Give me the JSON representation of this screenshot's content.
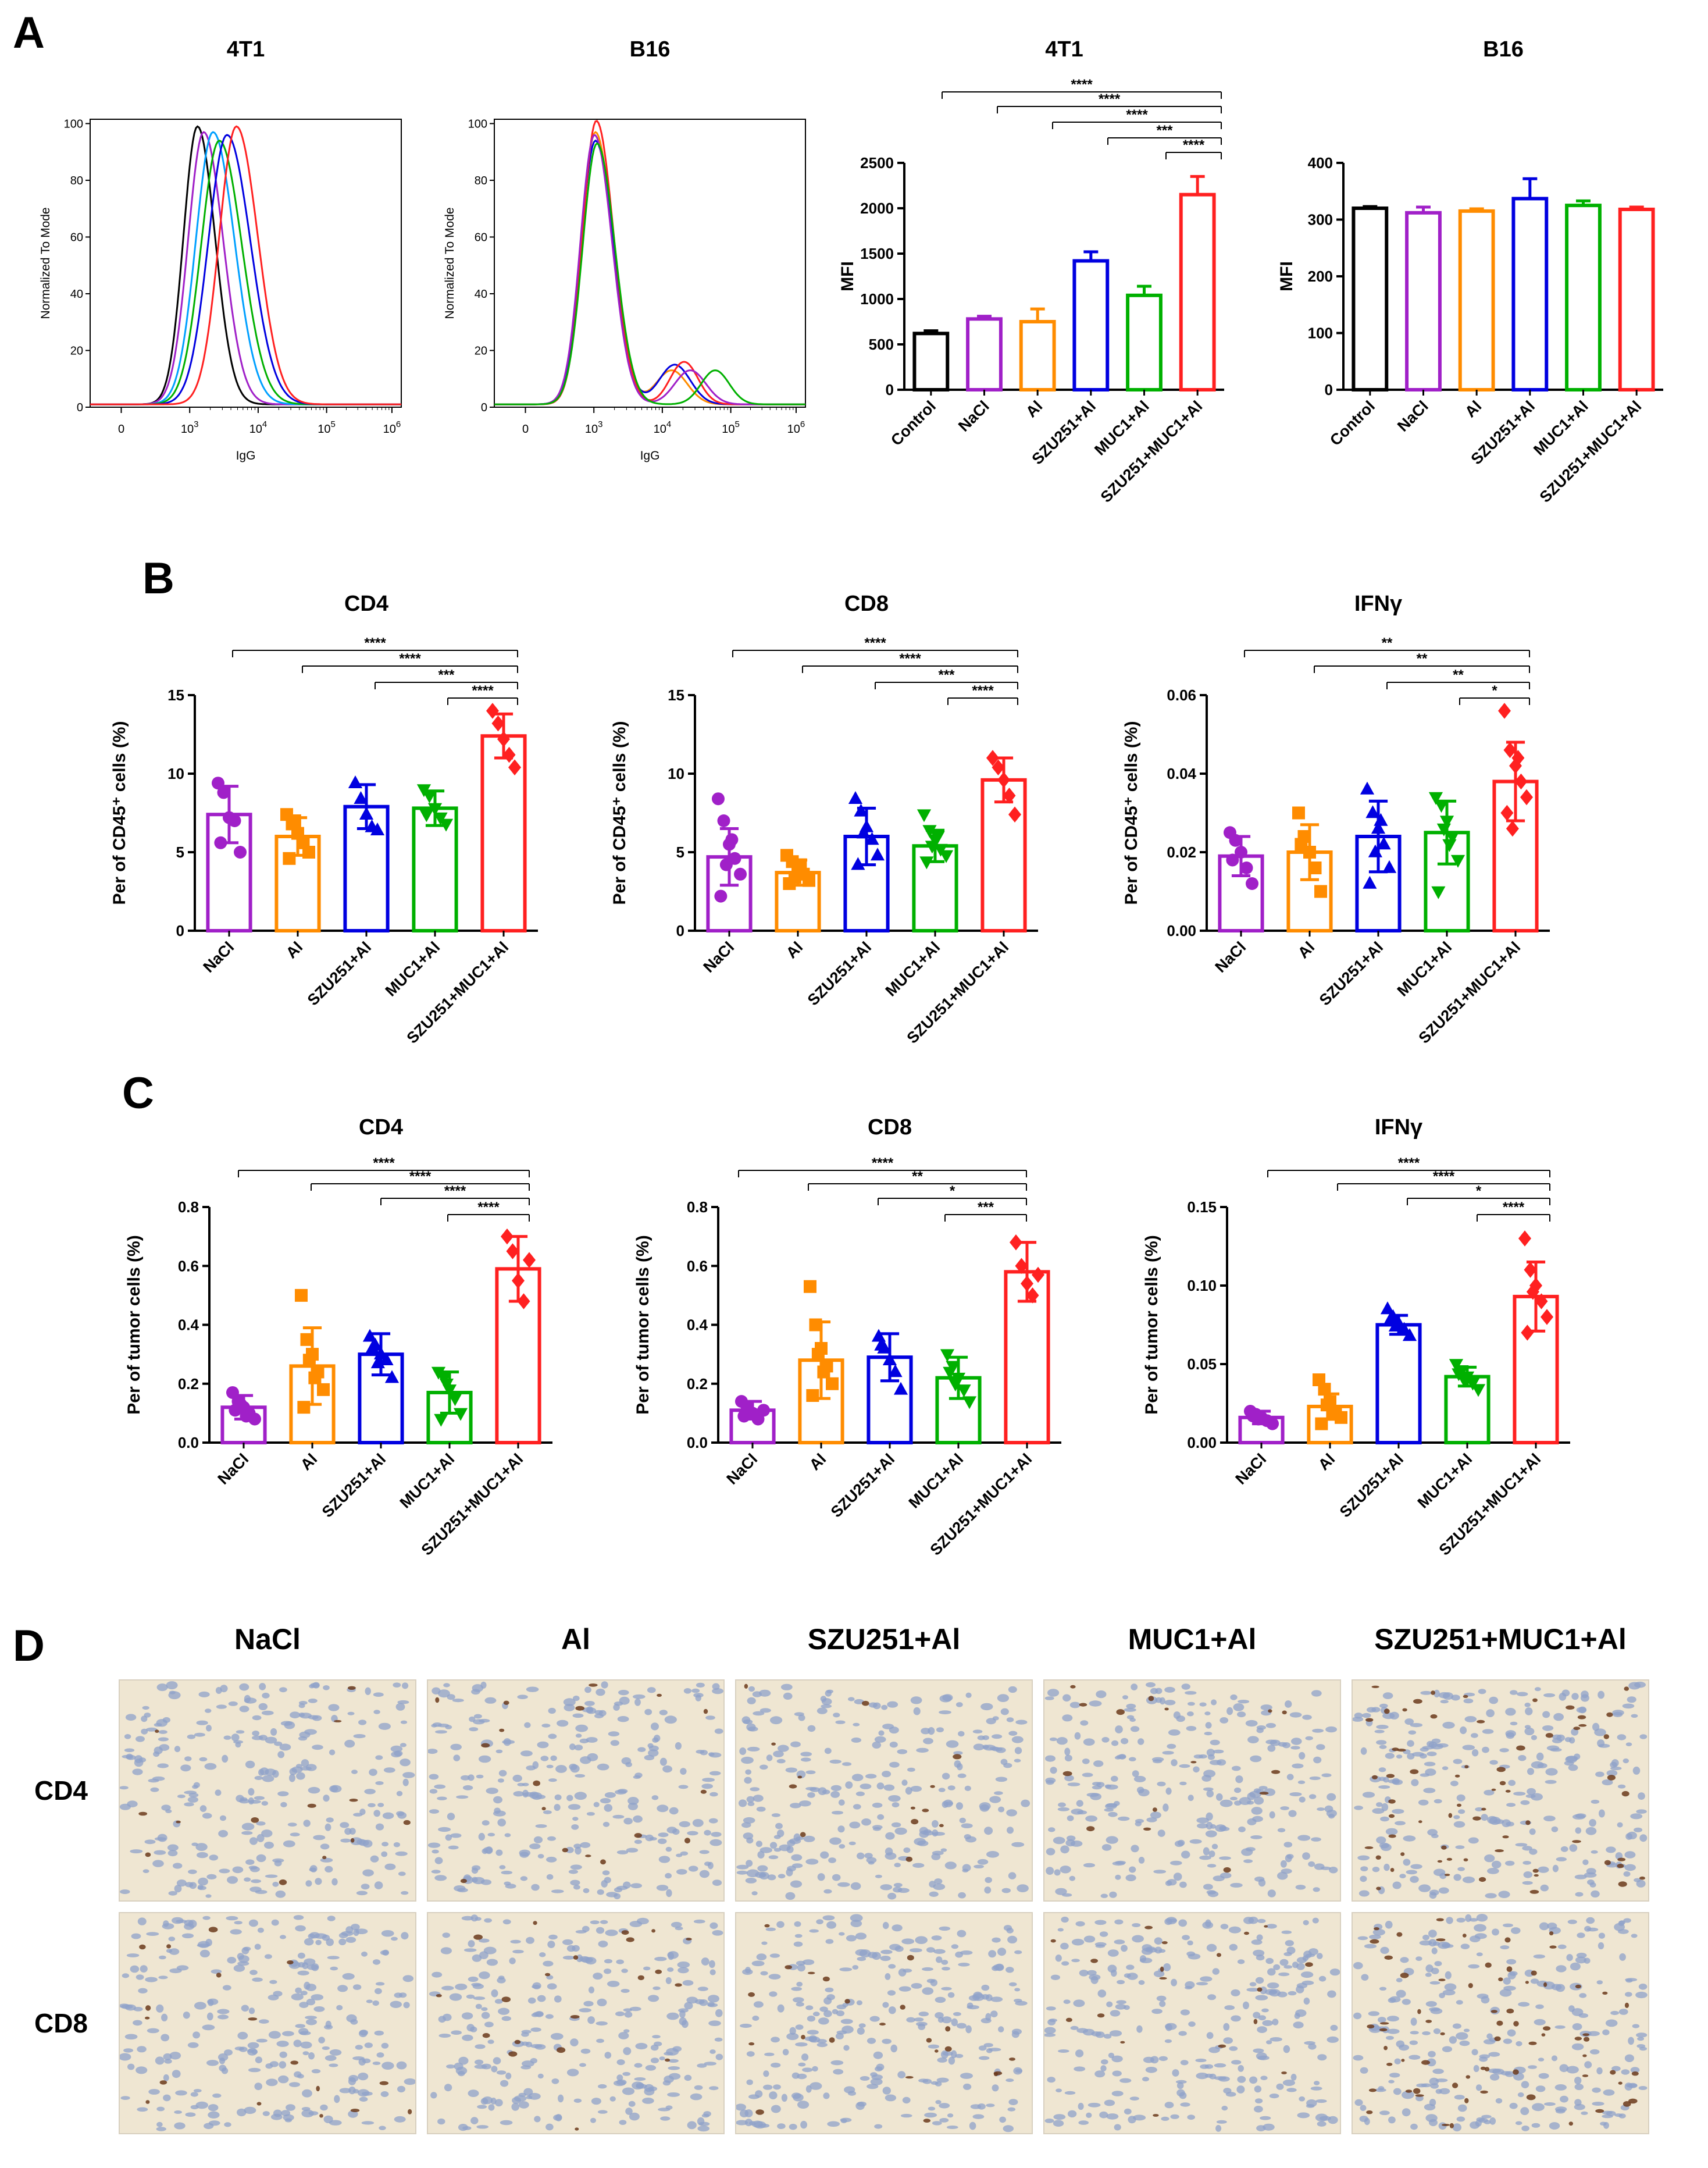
{
  "panel_labels": {
    "A": "A",
    "B": "B",
    "C": "C",
    "D": "D"
  },
  "group_colors": {
    "Control": "#000000",
    "NaCl": "#a020c8",
    "Al": "#ff8c00",
    "SZU251+Al": "#0000e0",
    "MUC1+Al": "#00b000",
    "SZU251+MUC1+Al": "#ff2020",
    "Emph": "#e60000"
  },
  "flow": [
    {
      "title": "4T1",
      "ylabel": "Normalized To Mode",
      "xlabel": "IgG",
      "yticks": [
        "0",
        "20",
        "40",
        "60",
        "80",
        "100"
      ],
      "xticks": [
        {
          "b": "0",
          "e": ""
        },
        {
          "b": "10",
          "e": "3"
        },
        {
          "b": "10",
          "e": "4"
        },
        {
          "b": "10",
          "e": "5"
        },
        {
          "b": "10",
          "e": "6"
        }
      ]
    },
    {
      "title": "B16",
      "ylabel": "Normalized To Mode",
      "xlabel": "IgG",
      "yticks": [
        "0",
        "20",
        "40",
        "60",
        "80",
        "100"
      ],
      "xticks": [
        {
          "b": "0",
          "e": ""
        },
        {
          "b": "10",
          "e": "3"
        },
        {
          "b": "10",
          "e": "4"
        },
        {
          "b": "10",
          "e": "5"
        },
        {
          "b": "10",
          "e": "6"
        }
      ]
    }
  ],
  "chart_data": [
    {
      "type": "bar",
      "title": "4T1",
      "ylabel": "MFI",
      "ylim": [
        0,
        2500
      ],
      "yticks": [
        0,
        500,
        1000,
        1500,
        2000,
        2500
      ],
      "categories": [
        "Control",
        "NaCl",
        "Al",
        "SZU251+Al",
        "MUC1+Al",
        "SZU251+MUC1+Al"
      ],
      "values": [
        620,
        780,
        750,
        1420,
        1040,
        2150
      ],
      "errors": [
        30,
        30,
        140,
        100,
        100,
        200
      ],
      "comparisons": [
        {
          "label": "****",
          "from": 0,
          "to": 5
        },
        {
          "label": "****",
          "from": 1,
          "to": 5
        },
        {
          "label": "****",
          "from": 2,
          "to": 5
        },
        {
          "label": "***",
          "from": 3,
          "to": 5
        },
        {
          "label": "****",
          "from": 4,
          "to": 5
        }
      ]
    },
    {
      "type": "bar",
      "title": "B16",
      "ylabel": "MFI",
      "ylim": [
        0,
        400
      ],
      "yticks": [
        0,
        100,
        200,
        300,
        400
      ],
      "categories": [
        "Control",
        "NaCl",
        "Al",
        "SZU251+Al",
        "MUC1+Al",
        "SZU251+MUC1+Al"
      ],
      "values": [
        320,
        312,
        315,
        337,
        325,
        318
      ],
      "errors": [
        3,
        10,
        4,
        35,
        8,
        4
      ],
      "comparisons": []
    },
    {
      "type": "bar",
      "title": "CD4",
      "ylabel": "Per of CD45⁺ cells (%)",
      "ylim": [
        0,
        15
      ],
      "yticks": [
        "0",
        "5",
        "10",
        "15"
      ],
      "categories": [
        "NaCl",
        "Al",
        "SZU251+Al",
        "MUC1+Al",
        "SZU251+MUC1+Al"
      ],
      "values": [
        7.4,
        6.0,
        7.9,
        7.8,
        12.4
      ],
      "errors": [
        1.8,
        1.2,
        1.4,
        1.1,
        1.4
      ],
      "points": [
        [
          9.4,
          8.8,
          7.2,
          7.0,
          5.0,
          5.6
        ],
        [
          7.4,
          6.8,
          6.2,
          5.6,
          5.0,
          4.6,
          7.0
        ],
        [
          9.4,
          8.4,
          7.4,
          6.6,
          6.4
        ],
        [
          9.0,
          8.6,
          7.8,
          7.2,
          6.8,
          7.4
        ],
        [
          14.0,
          13.2,
          12.2,
          11.2,
          10.4
        ]
      ],
      "comparisons": [
        {
          "label": "****",
          "from": 0,
          "to": 4
        },
        {
          "label": "****",
          "from": 1,
          "to": 4
        },
        {
          "label": "***",
          "from": 2,
          "to": 4
        },
        {
          "label": "****",
          "from": 3,
          "to": 4
        }
      ]
    },
    {
      "type": "bar",
      "title": "CD8",
      "ylabel": "Per of CD45⁺ cells (%)",
      "ylim": [
        0,
        15
      ],
      "yticks": [
        "0",
        "5",
        "10",
        "15"
      ],
      "categories": [
        "NaCl",
        "Al",
        "SZU251+Al",
        "MUC1+Al",
        "SZU251+MUC1+Al"
      ],
      "values": [
        4.7,
        3.7,
        6.0,
        5.4,
        9.6
      ],
      "errors": [
        1.8,
        0.8,
        1.8,
        1.0,
        1.4
      ],
      "points": [
        [
          8.4,
          7.0,
          5.5,
          4.6,
          3.6,
          2.2,
          4.2,
          5.8
        ],
        [
          4.8,
          4.4,
          4.0,
          3.6,
          3.2,
          3.0,
          3.4,
          4.2
        ],
        [
          8.4,
          7.6,
          6.6,
          5.8,
          4.8,
          4.2,
          6.2
        ],
        [
          7.4,
          6.4,
          5.8,
          5.2,
          4.8,
          4.4,
          5.4,
          6.0
        ],
        [
          11.0,
          10.4,
          9.6,
          8.6,
          7.4
        ]
      ],
      "comparisons": [
        {
          "label": "****",
          "from": 0,
          "to": 4
        },
        {
          "label": "****",
          "from": 1,
          "to": 4
        },
        {
          "label": "***",
          "from": 2,
          "to": 4
        },
        {
          "label": "****",
          "from": 3,
          "to": 4
        }
      ]
    },
    {
      "type": "bar",
      "title": "IFNγ",
      "ylabel": "Per of CD45⁺ cells (%)",
      "ylim": [
        0,
        0.06
      ],
      "yticks": [
        "0.00",
        "0.02",
        "0.04",
        "0.06"
      ],
      "categories": [
        "NaCl",
        "Al",
        "SZU251+Al",
        "MUC1+Al",
        "SZU251+MUC1+Al"
      ],
      "values": [
        0.019,
        0.02,
        0.024,
        0.025,
        0.038
      ],
      "errors": [
        0.005,
        0.007,
        0.009,
        0.008,
        0.01
      ],
      "points": [
        [
          0.025,
          0.023,
          0.02,
          0.016,
          0.012,
          0.018
        ],
        [
          0.03,
          0.024,
          0.02,
          0.016,
          0.01,
          0.022
        ],
        [
          0.036,
          0.03,
          0.026,
          0.022,
          0.016,
          0.012,
          0.02,
          0.028
        ],
        [
          0.034,
          0.032,
          0.028,
          0.024,
          0.018,
          0.01,
          0.026,
          0.022
        ],
        [
          0.056,
          0.046,
          0.042,
          0.038,
          0.034,
          0.03,
          0.026,
          0.044
        ]
      ],
      "comparisons": [
        {
          "label": "**",
          "from": 0,
          "to": 4
        },
        {
          "label": "**",
          "from": 1,
          "to": 4
        },
        {
          "label": "**",
          "from": 2,
          "to": 4
        },
        {
          "label": "*",
          "from": 3,
          "to": 4
        }
      ]
    },
    {
      "type": "bar",
      "title": "CD4",
      "ylabel": "Per of tumor cells (%)",
      "ylim": [
        0,
        0.8
      ],
      "yticks": [
        "0.0",
        "0.2",
        "0.4",
        "0.6",
        "0.8"
      ],
      "categories": [
        "NaCl",
        "Al",
        "SZU251+Al",
        "MUC1+Al",
        "SZU251+MUC1+Al"
      ],
      "values": [
        0.12,
        0.26,
        0.3,
        0.17,
        0.59
      ],
      "errors": [
        0.04,
        0.13,
        0.07,
        0.07,
        0.11
      ],
      "points": [
        [
          0.17,
          0.14,
          0.12,
          0.1,
          0.08,
          0.11,
          0.13,
          0.09
        ],
        [
          0.5,
          0.35,
          0.3,
          0.24,
          0.18,
          0.12,
          0.28,
          0.22
        ],
        [
          0.36,
          0.33,
          0.3,
          0.28,
          0.22,
          0.32,
          0.27
        ],
        [
          0.24,
          0.22,
          0.18,
          0.15,
          0.1,
          0.08,
          0.2
        ],
        [
          0.7,
          0.65,
          0.55,
          0.48,
          0.62
        ]
      ],
      "comparisons": [
        {
          "label": "****",
          "from": 0,
          "to": 4
        },
        {
          "label": "****",
          "from": 1,
          "to": 4
        },
        {
          "label": "****",
          "from": 2,
          "to": 4
        },
        {
          "label": "****",
          "from": 3,
          "to": 4
        }
      ]
    },
    {
      "type": "bar",
      "title": "CD8",
      "ylabel": "Per of tumor cells (%)",
      "ylim": [
        0,
        0.8
      ],
      "yticks": [
        "0.0",
        "0.2",
        "0.4",
        "0.6",
        "0.8"
      ],
      "categories": [
        "NaCl",
        "Al",
        "SZU251+Al",
        "MUC1+Al",
        "SZU251+MUC1+Al"
      ],
      "values": [
        0.11,
        0.28,
        0.29,
        0.22,
        0.58
      ],
      "errors": [
        0.03,
        0.13,
        0.08,
        0.07,
        0.1
      ],
      "points": [
        [
          0.14,
          0.12,
          0.1,
          0.08,
          0.11,
          0.09
        ],
        [
          0.53,
          0.4,
          0.32,
          0.26,
          0.2,
          0.16,
          0.3,
          0.24
        ],
        [
          0.36,
          0.32,
          0.28,
          0.24,
          0.18,
          0.33
        ],
        [
          0.3,
          0.26,
          0.22,
          0.18,
          0.14,
          0.24,
          0.2
        ],
        [
          0.68,
          0.6,
          0.54,
          0.5,
          0.57
        ]
      ],
      "comparisons": [
        {
          "label": "****",
          "from": 0,
          "to": 4
        },
        {
          "label": "**",
          "from": 1,
          "to": 4
        },
        {
          "label": "*",
          "from": 2,
          "to": 4
        },
        {
          "label": "***",
          "from": 3,
          "to": 4
        }
      ]
    },
    {
      "type": "bar",
      "title": "IFNγ",
      "ylabel": "Per of tumor cells (%)",
      "ylim": [
        0,
        0.15
      ],
      "yticks": [
        "0.00",
        "0.05",
        "0.10",
        "0.15"
      ],
      "categories": [
        "NaCl",
        "Al",
        "SZU251+Al",
        "MUC1+Al",
        "SZU251+MUC1+Al"
      ],
      "values": [
        0.016,
        0.023,
        0.075,
        0.042,
        0.093
      ],
      "errors": [
        0.004,
        0.008,
        0.006,
        0.006,
        0.022
      ],
      "points": [
        [
          0.02,
          0.018,
          0.016,
          0.014,
          0.012,
          0.017,
          0.015
        ],
        [
          0.04,
          0.034,
          0.026,
          0.02,
          0.016,
          0.012,
          0.024,
          0.018
        ],
        [
          0.085,
          0.08,
          0.076,
          0.072,
          0.068,
          0.078,
          0.074
        ],
        [
          0.05,
          0.046,
          0.042,
          0.038,
          0.034,
          0.044,
          0.04
        ],
        [
          0.13,
          0.11,
          0.1,
          0.09,
          0.08,
          0.07,
          0.096
        ]
      ],
      "comparisons": [
        {
          "label": "****",
          "from": 0,
          "to": 4
        },
        {
          "label": "****",
          "from": 1,
          "to": 4
        },
        {
          "label": "*",
          "from": 2,
          "to": 4
        },
        {
          "label": "****",
          "from": 3,
          "to": 4
        }
      ]
    }
  ],
  "ihc": {
    "columns": [
      "NaCl",
      "Al",
      "SZU251+Al",
      "MUC1+Al",
      "SZU251+MUC1+Al"
    ],
    "rows": [
      "CD4",
      "CD8"
    ],
    "intensity": [
      [
        0.9,
        1.2,
        0.9,
        1.1,
        4.5
      ],
      [
        1.2,
        1.4,
        1.6,
        1.3,
        4.8
      ]
    ]
  }
}
